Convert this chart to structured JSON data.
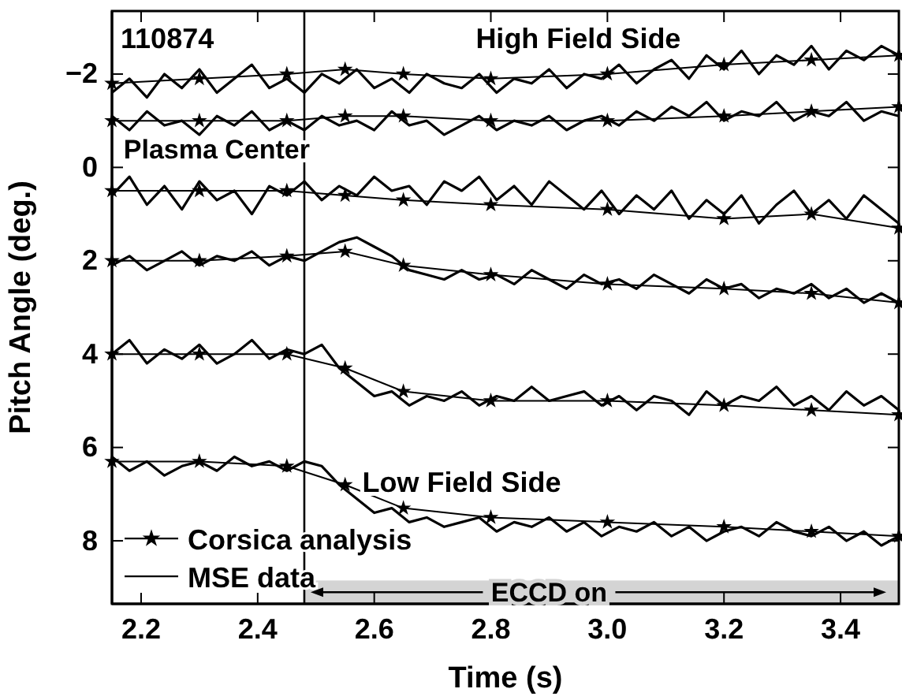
{
  "chart_data": {
    "type": "line",
    "xlabel": "Time (s)",
    "ylabel": "Pitch Angle (deg.)",
    "annotations": [
      "110874",
      "High Field Side",
      "Plasma Center",
      "Low Field Side",
      "ECCD on"
    ],
    "xlim": [
      2.15,
      3.5
    ],
    "ylim": [
      9.35,
      -3.35
    ],
    "xticks": [
      2.2,
      2.4,
      2.6,
      2.8,
      {
        "value": 3,
        "label": "3.0"
      },
      3.2,
      3.4
    ],
    "yticks": [
      {
        "value": -2,
        "label": "−2"
      },
      0,
      2,
      4,
      6,
      8
    ],
    "grid": false,
    "legend": "bottom left",
    "x": [
      2.15,
      2.18,
      2.21,
      2.24,
      2.27,
      2.3,
      2.33,
      2.36,
      2.39,
      2.42,
      2.45,
      2.48,
      2.51,
      2.54,
      2.57,
      2.6,
      2.63,
      2.66,
      2.69,
      2.72,
      2.75,
      2.78,
      2.81,
      2.84,
      2.87,
      2.9,
      2.93,
      2.96,
      2.99,
      3.02,
      3.05,
      3.08,
      3.11,
      3.14,
      3.17,
      3.2,
      3.23,
      3.26,
      3.29,
      3.32,
      3.35,
      3.38,
      3.41,
      3.44,
      3.47,
      3.5
    ],
    "ref_lines": [
      {
        "axis": "x",
        "value": 2.48,
        "color": "#000000"
      }
    ],
    "series": [
      {
        "name": "Corsica analysis",
        "color": "#000000",
        "marker": "star",
        "x": [
          2.15,
          2.3,
          2.45,
          2.55,
          2.65,
          2.8,
          3.0,
          3.2,
          3.35,
          3.5
        ],
        "values": [
          -1.8,
          -1.9,
          -2.0,
          -2.1,
          -2.0,
          -1.9,
          -2.0,
          -2.2,
          -2.3,
          -2.4
        ]
      },
      {
        "color": "#000000",
        "marker": "star",
        "x": [
          2.15,
          2.3,
          2.45,
          2.55,
          2.65,
          2.8,
          3.0,
          3.2,
          3.35,
          3.5
        ],
        "values": [
          -1.0,
          -1.0,
          -1.0,
          -1.1,
          -1.1,
          -1.0,
          -1.0,
          -1.1,
          -1.2,
          -1.3
        ]
      },
      {
        "color": "#000000",
        "marker": "star",
        "x": [
          2.15,
          2.3,
          2.45,
          2.55,
          2.65,
          2.8,
          3.0,
          3.2,
          3.35,
          3.5
        ],
        "values": [
          0.5,
          0.5,
          0.5,
          0.6,
          0.7,
          0.8,
          0.9,
          1.1,
          1.0,
          1.3
        ]
      },
      {
        "color": "#000000",
        "marker": "star",
        "x": [
          2.15,
          2.3,
          2.45,
          2.55,
          2.65,
          2.8,
          3.0,
          3.2,
          3.35,
          3.5
        ],
        "values": [
          2.0,
          2.0,
          1.9,
          1.8,
          2.1,
          2.3,
          2.5,
          2.6,
          2.7,
          2.9
        ]
      },
      {
        "color": "#000000",
        "marker": "star",
        "x": [
          2.15,
          2.3,
          2.45,
          2.55,
          2.65,
          2.8,
          3.0,
          3.2,
          3.35,
          3.5
        ],
        "values": [
          4.0,
          4.0,
          4.0,
          4.3,
          4.8,
          5.0,
          5.0,
          5.1,
          5.2,
          5.3
        ]
      },
      {
        "color": "#000000",
        "marker": "star",
        "x": [
          2.15,
          2.3,
          2.45,
          2.55,
          2.65,
          2.8,
          3.0,
          3.2,
          3.35,
          3.5
        ],
        "values": [
          6.3,
          6.3,
          6.4,
          6.8,
          7.3,
          7.5,
          7.6,
          7.7,
          7.8,
          7.9
        ]
      },
      {
        "name": "MSE data",
        "color": "#000000",
        "marker": "none",
        "values": [
          -1.6,
          -1.9,
          -1.5,
          -2.0,
          -1.7,
          -2.1,
          -1.6,
          -1.9,
          -2.2,
          -1.7,
          -1.9,
          -1.6,
          -2.0,
          -1.8,
          -2.1,
          -1.7,
          -1.9,
          -1.6,
          -2.0,
          -1.8,
          -1.7,
          -2.0,
          -1.6,
          -1.9,
          -1.8,
          -2.1,
          -1.7,
          -2.0,
          -1.9,
          -2.2,
          -1.8,
          -2.1,
          -2.3,
          -1.9,
          -2.4,
          -2.1,
          -2.5,
          -2.0,
          -2.4,
          -2.2,
          -2.6,
          -2.1,
          -2.5,
          -2.3,
          -2.6,
          -2.4
        ]
      },
      {
        "color": "#000000",
        "marker": "none",
        "values": [
          -1.1,
          -0.8,
          -1.2,
          -0.9,
          -1.0,
          -0.7,
          -1.1,
          -0.9,
          -1.2,
          -0.8,
          -1.0,
          -0.8,
          -1.1,
          -0.9,
          -1.0,
          -0.8,
          -1.2,
          -0.9,
          -1.0,
          -0.7,
          -0.9,
          -1.1,
          -0.8,
          -1.0,
          -0.9,
          -1.1,
          -0.8,
          -1.0,
          -1.1,
          -0.9,
          -1.2,
          -1.0,
          -1.3,
          -1.1,
          -1.4,
          -1.0,
          -1.2,
          -1.1,
          -1.4,
          -1.0,
          -1.2,
          -1.1,
          -1.4,
          -1.0,
          -1.2,
          -1.1
        ]
      },
      {
        "color": "#000000",
        "marker": "none",
        "values": [
          0.6,
          0.2,
          0.8,
          0.4,
          0.9,
          0.3,
          0.7,
          0.5,
          1.0,
          0.4,
          0.6,
          0.3,
          0.7,
          0.4,
          0.6,
          0.2,
          0.5,
          0.4,
          0.8,
          0.3,
          0.5,
          0.2,
          0.7,
          0.4,
          0.8,
          0.3,
          0.6,
          0.9,
          0.5,
          1.0,
          0.6,
          0.9,
          0.5,
          1.1,
          0.7,
          1.0,
          0.6,
          1.2,
          0.8,
          0.5,
          1.0,
          0.7,
          1.1,
          0.6,
          0.9,
          1.2
        ]
      },
      {
        "color": "#000000",
        "marker": "none",
        "values": [
          2.1,
          1.9,
          2.2,
          2.0,
          1.8,
          2.1,
          1.9,
          2.0,
          1.8,
          2.1,
          1.9,
          2.0,
          1.8,
          1.6,
          1.5,
          1.7,
          1.9,
          2.2,
          2.3,
          2.4,
          2.2,
          2.4,
          2.3,
          2.5,
          2.2,
          2.4,
          2.6,
          2.3,
          2.5,
          2.4,
          2.6,
          2.3,
          2.5,
          2.7,
          2.4,
          2.6,
          2.5,
          2.8,
          2.6,
          2.7,
          2.5,
          2.8,
          2.6,
          2.9,
          2.7,
          2.9
        ]
      },
      {
        "color": "#000000",
        "marker": "none",
        "values": [
          4.0,
          3.7,
          4.2,
          3.9,
          4.1,
          3.8,
          4.2,
          4.0,
          3.7,
          4.1,
          3.9,
          4.0,
          3.8,
          4.3,
          4.6,
          4.9,
          4.8,
          5.1,
          4.9,
          5.0,
          4.8,
          5.1,
          4.9,
          5.0,
          4.7,
          5.0,
          4.9,
          4.8,
          5.1,
          4.9,
          5.2,
          4.9,
          5.0,
          5.3,
          4.8,
          5.1,
          4.9,
          5.0,
          4.7,
          5.1,
          4.9,
          5.2,
          4.8,
          5.1,
          4.9,
          5.2
        ]
      },
      {
        "color": "#000000",
        "marker": "none",
        "values": [
          6.2,
          6.5,
          6.3,
          6.6,
          6.4,
          6.3,
          6.5,
          6.2,
          6.4,
          6.3,
          6.5,
          6.3,
          6.4,
          6.8,
          7.1,
          7.4,
          7.3,
          7.6,
          7.5,
          7.7,
          7.6,
          7.5,
          7.8,
          7.6,
          7.7,
          7.5,
          7.8,
          7.6,
          7.9,
          7.7,
          7.8,
          7.6,
          7.9,
          7.7,
          8.0,
          7.8,
          7.7,
          7.9,
          7.6,
          7.8,
          7.9,
          7.7,
          8.0,
          7.8,
          8.1,
          7.9
        ]
      }
    ]
  }
}
